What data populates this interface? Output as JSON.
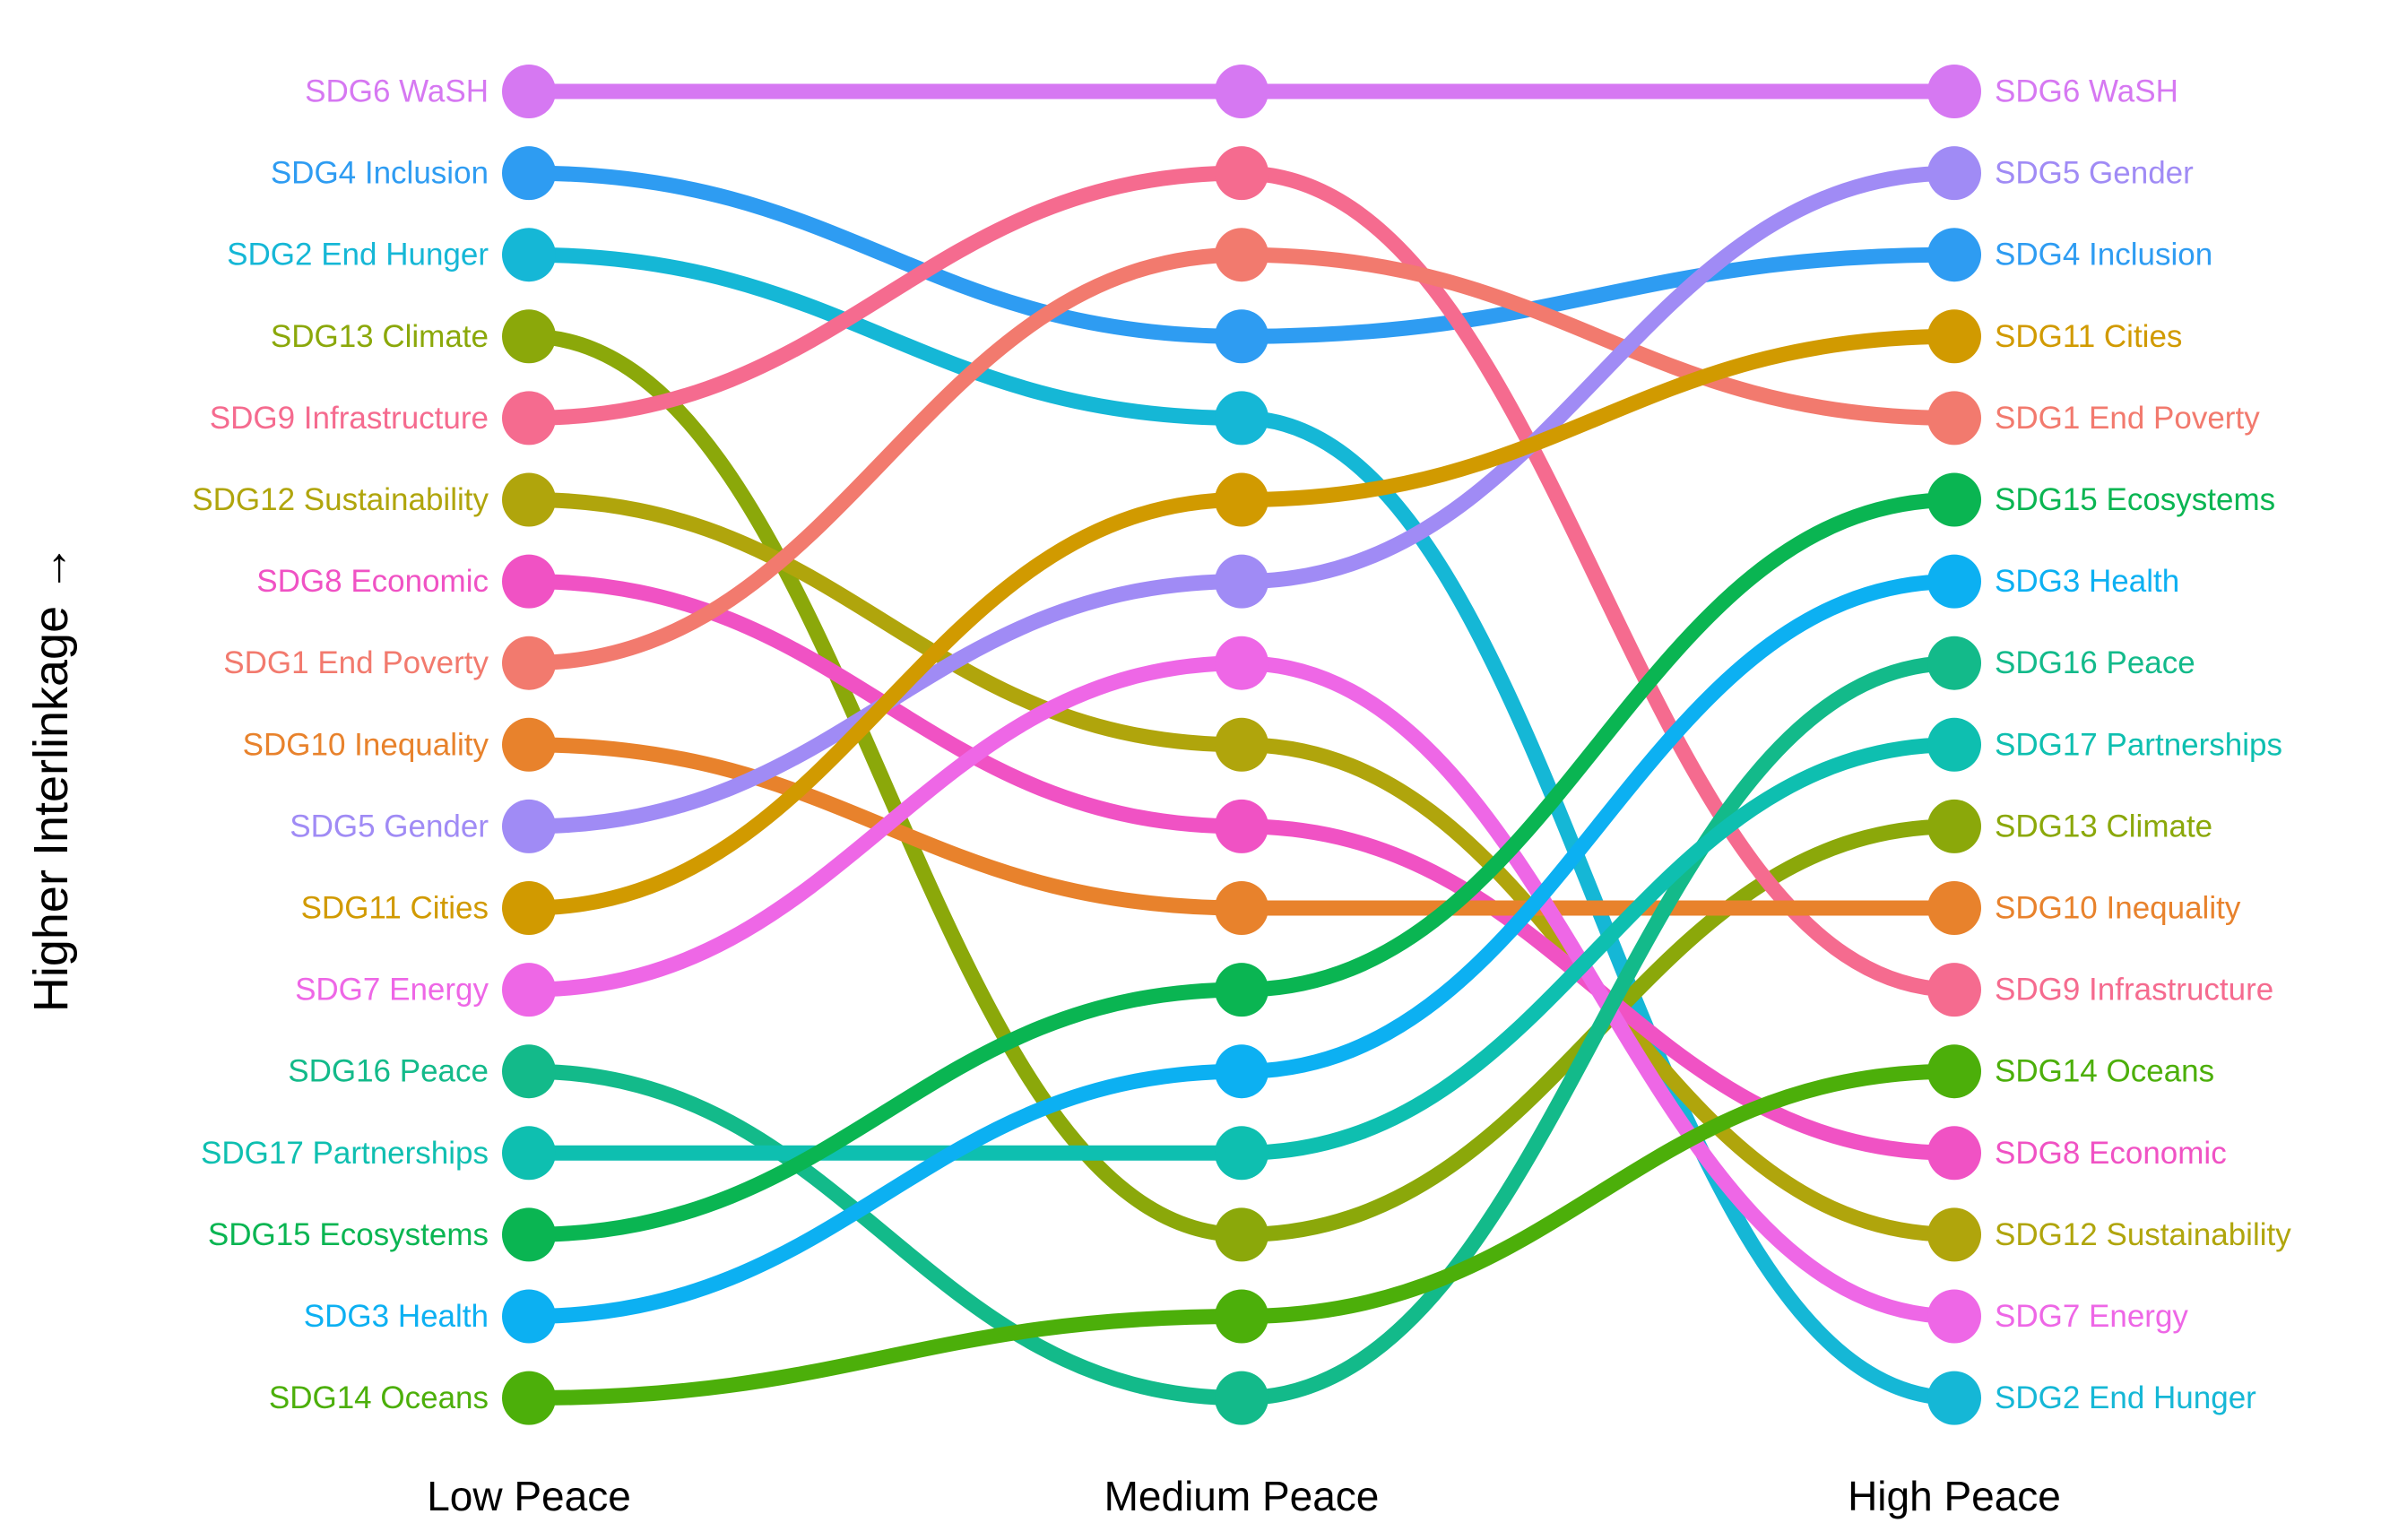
{
  "chart_data": {
    "type": "bump",
    "ylabel": "Higher Interlinkage →",
    "categories": [
      "Low Peace",
      "Medium Peace",
      "High Peace"
    ],
    "grid": false,
    "series": [
      {
        "name": "SDG6 WaSH",
        "color": "#D678F2",
        "ranks": [
          1,
          1,
          1
        ]
      },
      {
        "name": "SDG4 Inclusion",
        "color": "#2E9CF2",
        "ranks": [
          2,
          4,
          3
        ]
      },
      {
        "name": "SDG2 End Hunger",
        "color": "#15B7D6",
        "ranks": [
          3,
          5,
          17
        ]
      },
      {
        "name": "SDG13 Climate",
        "color": "#8BA80A",
        "ranks": [
          4,
          15,
          10
        ]
      },
      {
        "name": "SDG9 Infrastructure",
        "color": "#F56B8F",
        "ranks": [
          5,
          2,
          12
        ]
      },
      {
        "name": "SDG12 Sustainability",
        "color": "#B0A50C",
        "ranks": [
          6,
          9,
          15
        ]
      },
      {
        "name": "SDG8 Economic",
        "color": "#F052C4",
        "ranks": [
          7,
          10,
          14
        ]
      },
      {
        "name": "SDG1 End Poverty",
        "color": "#F27A6E",
        "ranks": [
          8,
          3,
          5
        ]
      },
      {
        "name": "SDG10 Inequality",
        "color": "#E8822C",
        "ranks": [
          9,
          11,
          11
        ]
      },
      {
        "name": "SDG5 Gender",
        "color": "#A08BF5",
        "ranks": [
          10,
          7,
          2
        ]
      },
      {
        "name": "SDG11 Cities",
        "color": "#D19A00",
        "ranks": [
          11,
          6,
          4
        ]
      },
      {
        "name": "SDG7 Energy",
        "color": "#EE67E6",
        "ranks": [
          12,
          8,
          16
        ]
      },
      {
        "name": "SDG16 Peace",
        "color": "#13BA8A",
        "ranks": [
          13,
          17,
          8
        ]
      },
      {
        "name": "SDG17 Partnerships",
        "color": "#0EBFB0",
        "ranks": [
          14,
          14,
          9
        ]
      },
      {
        "name": "SDG15 Ecosystems",
        "color": "#0AB552",
        "ranks": [
          15,
          12,
          6
        ]
      },
      {
        "name": "SDG3 Health",
        "color": "#0CB0F2",
        "ranks": [
          16,
          13,
          7
        ]
      },
      {
        "name": "SDG14 Oceans",
        "color": "#4CAF0A",
        "ranks": [
          17,
          16,
          13
        ]
      }
    ]
  }
}
